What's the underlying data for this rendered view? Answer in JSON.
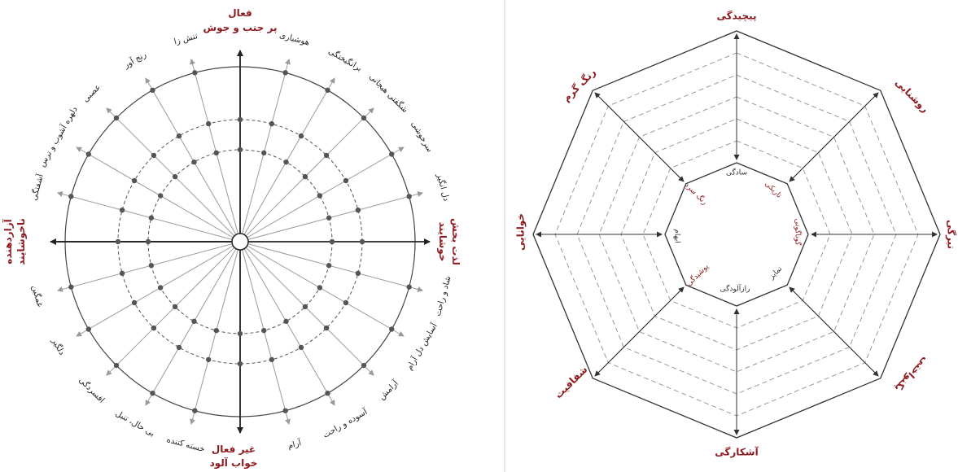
{
  "left_wheel": {
    "axis_top": [
      "فعال",
      "پر جنب و جوش"
    ],
    "axis_bottom": [
      "غیر فعال",
      "خواب آلود"
    ],
    "axis_right": [
      "لذت بخش",
      "خوشایند"
    ],
    "axis_left": [
      "آزاردهنده",
      "ناخوشایند"
    ],
    "spokes": [
      "هوشیاری",
      "برانگیختگی",
      "شگفتی هیجانی",
      "سرخوشی",
      "دل انگیز",
      "",
      "شاد و راحت",
      "آسایش دل آرام",
      "آرامش",
      "آسوده و راحت",
      "آرام",
      "",
      "خسته کننده",
      "بی حال، تنبل",
      "افسردگی",
      "دلگیر",
      "غمگین",
      "",
      "آشفتگی",
      "دلهره آشوب و ترس",
      "عصبی",
      "رنج آور",
      "تنش زا",
      ""
    ]
  },
  "right_octagon": {
    "outer": [
      "پیچیدگی",
      "روشنایی",
      "تیرگی",
      "یکنواختی",
      "آشکارگی",
      "شفافیت",
      "خوانایی",
      "رنگ گرم"
    ],
    "inner": [
      "سادگی",
      "تاریکی",
      "گوناگونی",
      "تمایز",
      "رازآلودگی",
      "پوشیدگی",
      "ابهام",
      "رنگ سرد"
    ]
  },
  "colors": {
    "accent": "#8e1b20",
    "line": "#333333",
    "grid": "#999999"
  }
}
